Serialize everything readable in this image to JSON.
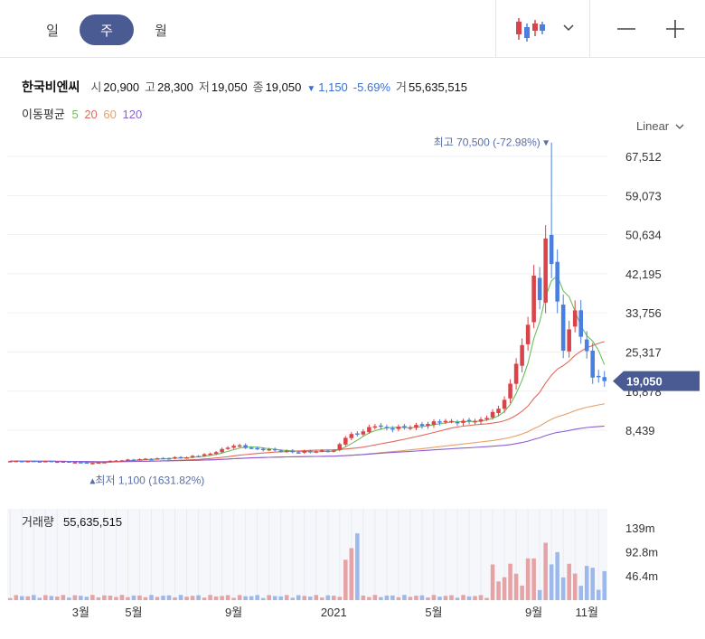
{
  "toolbar": {
    "tabs": [
      {
        "label": "일",
        "active": false
      },
      {
        "label": "주",
        "active": true
      },
      {
        "label": "월",
        "active": false
      }
    ],
    "chart_type_icon": "candlestick-icon",
    "dropdown_icon": "chevron-down-icon",
    "zoom_out_icon": "minus-icon",
    "zoom_in_icon": "plus-icon"
  },
  "stock": {
    "name": "한국비엔씨",
    "open_label": "시",
    "open": "20,900",
    "high_label": "고",
    "high": "28,300",
    "low_label": "저",
    "low": "19,050",
    "close_label": "종",
    "close": "19,050",
    "change": "1,150",
    "change_pct": "-5.69%",
    "volume_label": "거",
    "volume": "55,635,515"
  },
  "moving_average": {
    "title": "이동평균",
    "periods": [
      {
        "label": "5",
        "color": "#6bbf59"
      },
      {
        "label": "20",
        "color": "#e06b5a"
      },
      {
        "label": "60",
        "color": "#e8a06a"
      },
      {
        "label": "120",
        "color": "#8a5fd6"
      }
    ]
  },
  "scale": {
    "label": "Linear"
  },
  "colors": {
    "up": "#d9444a",
    "down": "#4a7fe0",
    "accent": "#4a5a93",
    "current_tag": "#4a5a93"
  },
  "chart_data": {
    "type": "candlestick",
    "yticks": [
      "67,512",
      "59,073",
      "50,634",
      "42,195",
      "33,756",
      "25,317",
      "16,878",
      "8,439"
    ],
    "ytick_values": [
      67512,
      59073,
      50634,
      42195,
      33756,
      25317,
      16878,
      8439
    ],
    "ylim": [
      -5000,
      72000
    ],
    "current_price": {
      "label": "19,050",
      "value": 19050
    },
    "high_annotation": {
      "label": "최고",
      "value_text": "70,500 (-72.98%)",
      "value": 70500,
      "index": 92
    },
    "low_annotation": {
      "label": "최저",
      "value_text": "1,100 (1631.82%)",
      "value": 1100,
      "index": 14
    },
    "xticks": [
      {
        "label": "3월",
        "index": 12
      },
      {
        "label": "5월",
        "index": 21
      },
      {
        "label": "9월",
        "index": 38
      },
      {
        "label": "2021",
        "index": 55
      },
      {
        "label": "5월",
        "index": 72
      },
      {
        "label": "9월",
        "index": 89
      },
      {
        "label": "11월",
        "index": 98
      }
    ],
    "bars_count": 102,
    "keypoints_close": [
      [
        0,
        1800
      ],
      [
        8,
        1700
      ],
      [
        14,
        1400
      ],
      [
        18,
        1900
      ],
      [
        25,
        2400
      ],
      [
        30,
        2600
      ],
      [
        34,
        3400
      ],
      [
        36,
        4400
      ],
      [
        38,
        5100
      ],
      [
        42,
        4500
      ],
      [
        48,
        3700
      ],
      [
        52,
        3900
      ],
      [
        55,
        4100
      ],
      [
        57,
        6800
      ],
      [
        60,
        8200
      ],
      [
        62,
        9300
      ],
      [
        65,
        8600
      ],
      [
        69,
        9600
      ],
      [
        73,
        10100
      ],
      [
        77,
        10500
      ],
      [
        80,
        10800
      ],
      [
        83,
        13100
      ],
      [
        85,
        18500
      ],
      [
        87,
        26800
      ],
      [
        88,
        31200
      ],
      [
        89,
        41800
      ],
      [
        90,
        36500
      ],
      [
        91,
        49800
      ],
      [
        92,
        44300
      ],
      [
        93,
        36200
      ],
      [
        94,
        25600
      ],
      [
        95,
        30200
      ],
      [
        96,
        34300
      ],
      [
        97,
        28600
      ],
      [
        98,
        25500
      ],
      [
        99,
        19800
      ],
      [
        100,
        20100
      ],
      [
        101,
        19050
      ]
    ],
    "volume": {
      "label": "거래량",
      "value": "55,635,515",
      "yticks": [
        "139m",
        "92.8m",
        "46.4m"
      ],
      "ytick_values": [
        139,
        92.8,
        46.4
      ],
      "ylim": [
        0,
        175
      ],
      "unit": "m"
    }
  }
}
